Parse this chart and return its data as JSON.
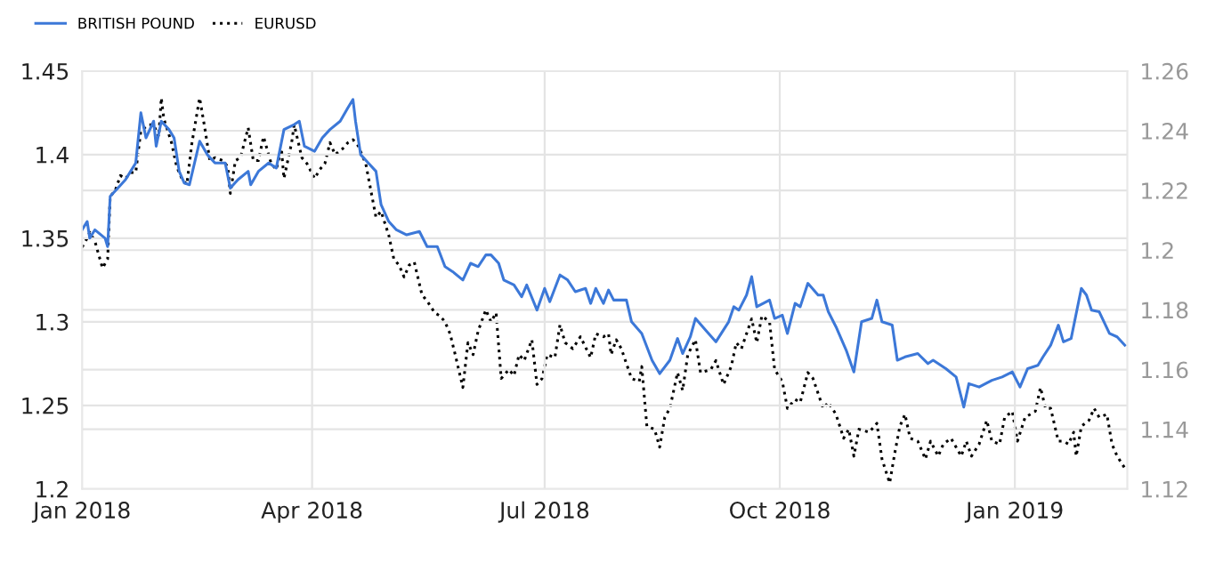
{
  "chart_data": {
    "type": "line",
    "xlim": [
      "2018-01-01",
      "2019-02-14"
    ],
    "xticks": [
      {
        "value": "2018-01-01",
        "label": "Jan 2018"
      },
      {
        "value": "2018-04-01",
        "label": "Apr 2018"
      },
      {
        "value": "2018-07-01",
        "label": "Jul 2018"
      },
      {
        "value": "2018-10-01",
        "label": "Oct 2018"
      },
      {
        "value": "2019-01-01",
        "label": "Jan 2019"
      }
    ],
    "ylim": [
      1.2,
      1.45
    ],
    "yticks": [
      1.2,
      1.25,
      1.3,
      1.35,
      1.4,
      1.45
    ],
    "y2lim": [
      1.12,
      1.26
    ],
    "y2ticks": [
      1.12,
      1.14,
      1.16,
      1.18,
      1.2,
      1.22,
      1.24,
      1.26
    ],
    "grid": true,
    "legend": "top left",
    "series": [
      {
        "name": "BRITISH POUND",
        "color": "#3c78d8",
        "line_style": "solid",
        "x": [
          "2018-01-01",
          "2018-01-03",
          "2018-01-04",
          "2018-01-06",
          "2018-01-10",
          "2018-01-11",
          "2018-01-12",
          "2018-01-15",
          "2018-01-18",
          "2018-01-20",
          "2018-01-22",
          "2018-01-24",
          "2018-01-26",
          "2018-01-29",
          "2018-01-30",
          "2018-02-01",
          "2018-02-04",
          "2018-02-06",
          "2018-02-08",
          "2018-02-10",
          "2018-02-12",
          "2018-02-16",
          "2018-02-19",
          "2018-02-22",
          "2018-02-26",
          "2018-02-28",
          "2018-03-03",
          "2018-03-07",
          "2018-03-08",
          "2018-03-11",
          "2018-03-15",
          "2018-03-18",
          "2018-03-21",
          "2018-03-25",
          "2018-03-27",
          "2018-03-29",
          "2018-04-02",
          "2018-04-05",
          "2018-04-08",
          "2018-04-12",
          "2018-04-15",
          "2018-04-17",
          "2018-04-18",
          "2018-04-20",
          "2018-04-23",
          "2018-04-26",
          "2018-04-28",
          "2018-05-01",
          "2018-05-04",
          "2018-05-08",
          "2018-05-13",
          "2018-05-16",
          "2018-05-20",
          "2018-05-23",
          "2018-05-26",
          "2018-05-30",
          "2018-06-02",
          "2018-06-05",
          "2018-06-08",
          "2018-06-10",
          "2018-06-13",
          "2018-06-15",
          "2018-06-19",
          "2018-06-22",
          "2018-06-24",
          "2018-06-28",
          "2018-07-01",
          "2018-07-03",
          "2018-07-07",
          "2018-07-10",
          "2018-07-13",
          "2018-07-17",
          "2018-07-19",
          "2018-07-21",
          "2018-07-24",
          "2018-07-26",
          "2018-07-28",
          "2018-08-02",
          "2018-08-04",
          "2018-08-08",
          "2018-08-12",
          "2018-08-15",
          "2018-08-19",
          "2018-08-22",
          "2018-08-24",
          "2018-08-27",
          "2018-08-29",
          "2018-09-02",
          "2018-09-06",
          "2018-09-11",
          "2018-09-13",
          "2018-09-15",
          "2018-09-18",
          "2018-09-20",
          "2018-09-22",
          "2018-09-27",
          "2018-09-29",
          "2018-10-02",
          "2018-10-04",
          "2018-10-07",
          "2018-10-09",
          "2018-10-12",
          "2018-10-16",
          "2018-10-18",
          "2018-10-20",
          "2018-10-23",
          "2018-10-27",
          "2018-10-30",
          "2018-11-02",
          "2018-11-06",
          "2018-11-08",
          "2018-11-10",
          "2018-11-14",
          "2018-11-16",
          "2018-11-19",
          "2018-11-24",
          "2018-11-28",
          "2018-11-30",
          "2018-12-05",
          "2018-12-09",
          "2018-12-12",
          "2018-12-14",
          "2018-12-18",
          "2018-12-23",
          "2018-12-27",
          "2018-12-31",
          "2019-01-03",
          "2019-01-06",
          "2019-01-10",
          "2019-01-12",
          "2019-01-15",
          "2019-01-18",
          "2019-01-20",
          "2019-01-23",
          "2019-01-27",
          "2019-01-29",
          "2019-01-31",
          "2019-02-03",
          "2019-02-07",
          "2019-02-10",
          "2019-02-13"
        ],
        "values": [
          1.355,
          1.36,
          1.35,
          1.355,
          1.35,
          1.345,
          1.375,
          1.38,
          1.385,
          1.39,
          1.395,
          1.425,
          1.41,
          1.42,
          1.405,
          1.42,
          1.415,
          1.41,
          1.39,
          1.383,
          1.382,
          1.408,
          1.4,
          1.395,
          1.395,
          1.38,
          1.385,
          1.39,
          1.382,
          1.39,
          1.395,
          1.392,
          1.415,
          1.418,
          1.42,
          1.405,
          1.402,
          1.41,
          1.415,
          1.42,
          1.428,
          1.433,
          1.42,
          1.4,
          1.395,
          1.39,
          1.37,
          1.36,
          1.355,
          1.352,
          1.354,
          1.345,
          1.345,
          1.333,
          1.33,
          1.325,
          1.335,
          1.333,
          1.34,
          1.34,
          1.335,
          1.325,
          1.322,
          1.315,
          1.322,
          1.307,
          1.32,
          1.312,
          1.328,
          1.325,
          1.318,
          1.32,
          1.311,
          1.32,
          1.311,
          1.319,
          1.313,
          1.313,
          1.3,
          1.293,
          1.277,
          1.269,
          1.277,
          1.29,
          1.281,
          1.291,
          1.302,
          1.295,
          1.288,
          1.3,
          1.309,
          1.307,
          1.316,
          1.327,
          1.309,
          1.313,
          1.302,
          1.304,
          1.293,
          1.311,
          1.309,
          1.323,
          1.316,
          1.316,
          1.306,
          1.297,
          1.283,
          1.27,
          1.3,
          1.302,
          1.313,
          1.3,
          1.298,
          1.277,
          1.279,
          1.281,
          1.275,
          1.277,
          1.272,
          1.267,
          1.249,
          1.263,
          1.261,
          1.265,
          1.267,
          1.27,
          1.261,
          1.272,
          1.274,
          1.279,
          1.286,
          1.298,
          1.288,
          1.29,
          1.32,
          1.316,
          1.307,
          1.306,
          1.293,
          1.291,
          1.286
        ]
      },
      {
        "name": "EURUSD",
        "color": "#000000",
        "line_style": "dotted",
        "axis": "y2",
        "x": [
          "2018-01-01",
          "2018-01-03",
          "2018-01-04",
          "2018-01-06",
          "2018-01-09",
          "2018-01-11",
          "2018-01-12",
          "2018-01-14",
          "2018-01-16",
          "2018-01-18",
          "2018-01-20",
          "2018-01-22",
          "2018-01-24",
          "2018-01-27",
          "2018-01-29",
          "2018-01-31",
          "2018-02-01",
          "2018-02-02",
          "2018-02-05",
          "2018-02-07",
          "2018-02-09",
          "2018-02-11",
          "2018-02-13",
          "2018-02-16",
          "2018-02-18",
          "2018-02-20",
          "2018-02-22",
          "2018-02-25",
          "2018-02-27",
          "2018-02-28",
          "2018-03-02",
          "2018-03-04",
          "2018-03-07",
          "2018-03-09",
          "2018-03-11",
          "2018-03-13",
          "2018-03-16",
          "2018-03-18",
          "2018-03-20",
          "2018-03-21",
          "2018-03-24",
          "2018-03-25",
          "2018-03-28",
          "2018-03-30",
          "2018-04-02",
          "2018-04-04",
          "2018-04-06",
          "2018-04-08",
          "2018-04-10",
          "2018-04-13",
          "2018-04-15",
          "2018-04-17",
          "2018-04-19",
          "2018-04-22",
          "2018-04-24",
          "2018-04-26",
          "2018-04-28",
          "2018-05-01",
          "2018-05-03",
          "2018-05-05",
          "2018-05-07",
          "2018-05-09",
          "2018-05-11",
          "2018-05-14",
          "2018-05-16",
          "2018-05-19",
          "2018-05-21",
          "2018-05-23",
          "2018-05-25",
          "2018-05-27",
          "2018-05-30",
          "2018-06-01",
          "2018-06-03",
          "2018-06-05",
          "2018-06-08",
          "2018-06-10",
          "2018-06-12",
          "2018-06-14",
          "2018-06-17",
          "2018-06-19",
          "2018-06-21",
          "2018-06-23",
          "2018-06-26",
          "2018-06-28",
          "2018-06-30",
          "2018-07-02",
          "2018-07-05",
          "2018-07-07",
          "2018-07-09",
          "2018-07-12",
          "2018-07-15",
          "2018-07-19",
          "2018-07-21",
          "2018-07-24",
          "2018-07-26",
          "2018-07-27",
          "2018-07-29",
          "2018-07-31",
          "2018-08-04",
          "2018-08-07",
          "2018-08-08",
          "2018-08-10",
          "2018-08-13",
          "2018-08-15",
          "2018-08-17",
          "2018-08-19",
          "2018-08-22",
          "2018-08-24",
          "2018-08-26",
          "2018-08-29",
          "2018-08-31",
          "2018-09-04",
          "2018-09-06",
          "2018-09-09",
          "2018-09-12",
          "2018-09-14",
          "2018-09-16",
          "2018-09-20",
          "2018-09-22",
          "2018-09-24",
          "2018-09-27",
          "2018-09-29",
          "2018-10-02",
          "2018-10-04",
          "2018-10-07",
          "2018-10-09",
          "2018-10-12",
          "2018-10-14",
          "2018-10-18",
          "2018-10-20",
          "2018-10-23",
          "2018-10-26",
          "2018-10-28",
          "2018-10-30",
          "2018-11-01",
          "2018-11-05",
          "2018-11-08",
          "2018-11-10",
          "2018-11-13",
          "2018-11-15",
          "2018-11-17",
          "2018-11-19",
          "2018-11-21",
          "2018-11-24",
          "2018-11-27",
          "2018-11-29",
          "2018-12-02",
          "2018-12-04",
          "2018-12-07",
          "2018-12-11",
          "2018-12-13",
          "2018-12-15",
          "2018-12-18",
          "2018-12-21",
          "2018-12-23",
          "2018-12-26",
          "2018-12-28",
          "2018-12-31",
          "2019-01-02",
          "2019-01-05",
          "2019-01-09",
          "2019-01-11",
          "2019-01-13",
          "2019-01-15",
          "2019-01-18",
          "2019-01-20",
          "2019-01-22",
          "2019-01-24",
          "2019-01-25",
          "2019-01-27",
          "2019-01-30",
          "2019-02-01",
          "2019-02-03",
          "2019-02-06",
          "2019-02-08",
          "2019-02-10",
          "2019-02-13"
        ],
        "values": [
          1.201,
          1.204,
          1.206,
          1.203,
          1.194,
          1.197,
          1.218,
          1.22,
          1.225,
          1.224,
          1.226,
          1.226,
          1.24,
          1.242,
          1.242,
          1.238,
          1.251,
          1.244,
          1.236,
          1.228,
          1.224,
          1.222,
          1.236,
          1.251,
          1.241,
          1.23,
          1.231,
          1.23,
          1.228,
          1.219,
          1.23,
          1.231,
          1.241,
          1.23,
          1.23,
          1.238,
          1.229,
          1.227,
          1.234,
          1.224,
          1.236,
          1.242,
          1.231,
          1.229,
          1.224,
          1.227,
          1.229,
          1.236,
          1.232,
          1.234,
          1.236,
          1.237,
          1.235,
          1.229,
          1.22,
          1.211,
          1.213,
          1.205,
          1.197,
          1.195,
          1.191,
          1.195,
          1.196,
          1.185,
          1.183,
          1.179,
          1.178,
          1.176,
          1.172,
          1.165,
          1.154,
          1.169,
          1.165,
          1.173,
          1.18,
          1.176,
          1.179,
          1.157,
          1.16,
          1.158,
          1.165,
          1.163,
          1.17,
          1.155,
          1.157,
          1.165,
          1.164,
          1.175,
          1.169,
          1.167,
          1.171,
          1.164,
          1.172,
          1.171,
          1.172,
          1.165,
          1.17,
          1.167,
          1.157,
          1.156,
          1.161,
          1.141,
          1.14,
          1.134,
          1.144,
          1.147,
          1.159,
          1.153,
          1.165,
          1.17,
          1.159,
          1.16,
          1.163,
          1.155,
          1.161,
          1.169,
          1.167,
          1.177,
          1.169,
          1.178,
          1.176,
          1.16,
          1.156,
          1.147,
          1.15,
          1.149,
          1.159,
          1.157,
          1.147,
          1.149,
          1.145,
          1.137,
          1.14,
          1.131,
          1.14,
          1.139,
          1.142,
          1.13,
          1.122,
          1.132,
          1.141,
          1.145,
          1.137,
          1.136,
          1.13,
          1.136,
          1.131,
          1.135,
          1.137,
          1.131,
          1.136,
          1.131,
          1.135,
          1.143,
          1.136,
          1.135,
          1.144,
          1.146,
          1.136,
          1.144,
          1.146,
          1.154,
          1.147,
          1.147,
          1.136,
          1.136,
          1.135,
          1.139,
          1.131,
          1.141,
          1.143,
          1.147,
          1.144,
          1.145,
          1.135,
          1.131,
          1.127
        ]
      }
    ]
  }
}
